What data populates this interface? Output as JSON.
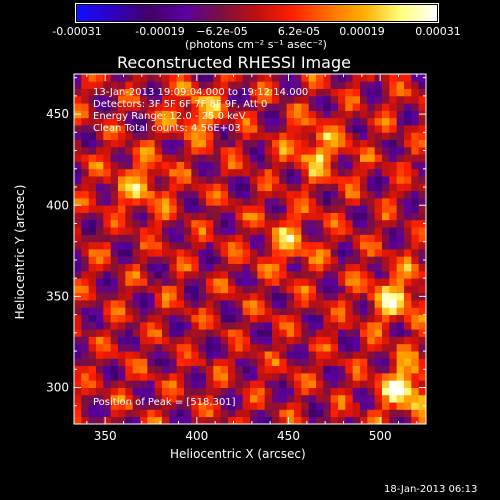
{
  "colorbar": {
    "ticks": [
      "-0.00031",
      "-0.00019",
      "−6.2e-05",
      "6.2e-05",
      "0.00019",
      "0.00031"
    ],
    "unit_label": "(photons cm⁻² s⁻¹ asec⁻²)",
    "colors": [
      "#1010ff",
      "#3000c0",
      "#440066",
      "#5a00a0",
      "#7a1040",
      "#c01010",
      "#ff2000",
      "#ff7000",
      "#ffb000",
      "#ffff80",
      "#ffffff"
    ]
  },
  "chart_data": {
    "type": "heatmap",
    "title": "Reconstructed RHESSI Image",
    "xlabel": "Heliocentric X (arcsec)",
    "ylabel": "Heliocentric Y (arcsec)",
    "xlim": [
      333,
      525
    ],
    "ylim": [
      280,
      472
    ],
    "x_ticks": [
      350,
      400,
      450,
      500
    ],
    "y_ticks": [
      300,
      350,
      400,
      450
    ],
    "zlim": [
      -0.00031,
      0.00031
    ],
    "info_lines": [
      "13-Jan-2013 19:09:04.000 to 19:12:14.000",
      "Detectors: 3F 5F 6F 7F 8F 9F, Att 0",
      "Energy Range: 12.0 - 25.0 keV",
      "Clean     Total counts: 4.56E+03"
    ],
    "peak_label": "Position of Peak = [518,301]",
    "peak": [
      518,
      301
    ],
    "bright_sources": [
      {
        "x": 515,
        "y": 300,
        "value": 0.00031
      },
      {
        "x": 508,
        "y": 350,
        "value": 0.00024
      },
      {
        "x": 465,
        "y": 430,
        "value": 0.00022
      },
      {
        "x": 400,
        "y": 452,
        "value": 0.0002
      },
      {
        "x": 450,
        "y": 380,
        "value": 0.00018
      },
      {
        "x": 370,
        "y": 410,
        "value": 0.00019
      }
    ]
  },
  "footer": {
    "timestamp": "18-Jan-2013 06:13"
  }
}
